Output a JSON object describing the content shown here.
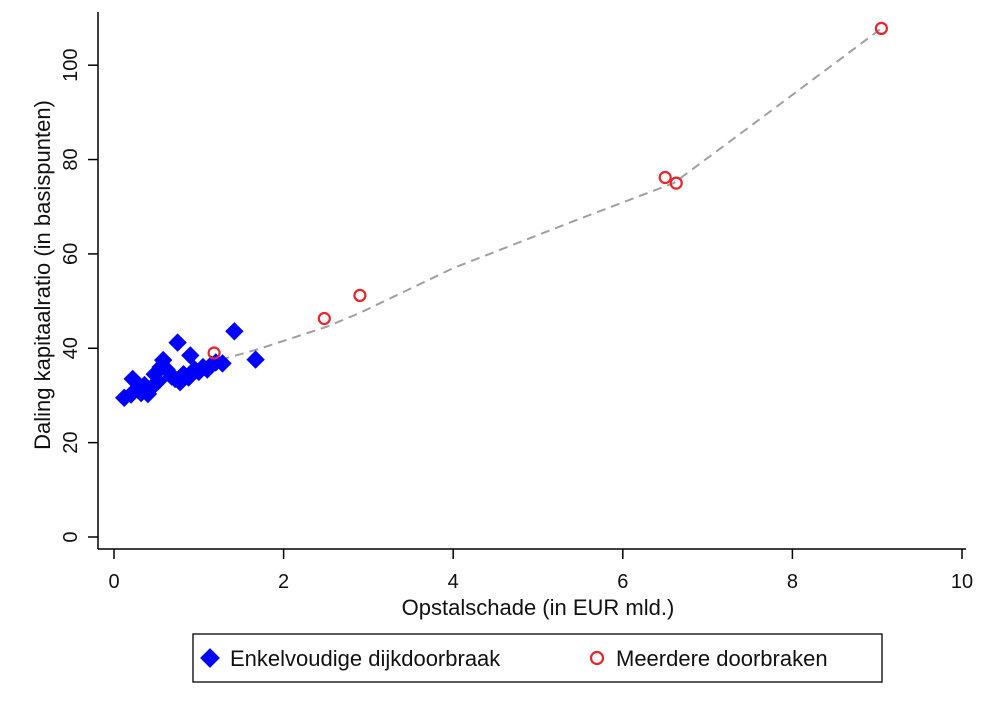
{
  "chart_data": {
    "type": "scatter",
    "xlabel": "Opstalschade (in EUR mld.)",
    "ylabel": "Daling kapitaalratio (in basispunten)",
    "xlim": [
      0,
      10
    ],
    "ylim": [
      0,
      110
    ],
    "xticks": [
      0,
      2,
      4,
      6,
      8,
      10
    ],
    "yticks": [
      0,
      20,
      40,
      60,
      80,
      100
    ],
    "grid": false,
    "legend_position": "bottom",
    "series": [
      {
        "name": "Enkelvoudige dijkdoorbraak",
        "marker": "diamond",
        "color": "#0000ff",
        "points": [
          [
            0.12,
            29.5
          ],
          [
            0.2,
            30.2
          ],
          [
            0.22,
            33.5
          ],
          [
            0.28,
            31.5
          ],
          [
            0.32,
            30.5
          ],
          [
            0.36,
            32.2
          ],
          [
            0.4,
            30.3
          ],
          [
            0.45,
            31.8
          ],
          [
            0.48,
            34.5
          ],
          [
            0.52,
            33.0
          ],
          [
            0.55,
            36.0
          ],
          [
            0.58,
            37.5
          ],
          [
            0.62,
            35.5
          ],
          [
            0.68,
            34.0
          ],
          [
            0.72,
            33.5
          ],
          [
            0.75,
            41.2
          ],
          [
            0.78,
            32.8
          ],
          [
            0.82,
            34.5
          ],
          [
            0.88,
            33.8
          ],
          [
            0.9,
            38.5
          ],
          [
            0.95,
            35.5
          ],
          [
            1.0,
            35.0
          ],
          [
            1.05,
            36.0
          ],
          [
            1.1,
            35.5
          ],
          [
            1.15,
            36.5
          ],
          [
            1.2,
            37.0
          ],
          [
            1.28,
            36.8
          ],
          [
            1.42,
            43.6
          ],
          [
            1.67,
            37.6
          ]
        ]
      },
      {
        "name": "Meerdere doorbraken",
        "marker": "hollow-circle",
        "color": "#e8262a",
        "points": [
          [
            1.18,
            39.0
          ],
          [
            2.48,
            46.3
          ],
          [
            2.9,
            51.2
          ],
          [
            6.5,
            76.2
          ],
          [
            6.63,
            75.0
          ],
          [
            9.05,
            107.8
          ]
        ]
      }
    ],
    "fit_line": {
      "style": "dashed",
      "color": "#a0a0a0",
      "points": [
        [
          0.12,
          28.8
        ],
        [
          0.4,
          31.5
        ],
        [
          0.7,
          34.0
        ],
        [
          1.0,
          36.0
        ],
        [
          1.3,
          37.8
        ],
        [
          1.7,
          39.8
        ],
        [
          2.5,
          44.5
        ],
        [
          2.9,
          47.5
        ],
        [
          4.0,
          57.0
        ],
        [
          5.5,
          67.5
        ],
        [
          6.6,
          75.0
        ],
        [
          7.5,
          87.0
        ],
        [
          9.05,
          107.8
        ]
      ]
    }
  }
}
